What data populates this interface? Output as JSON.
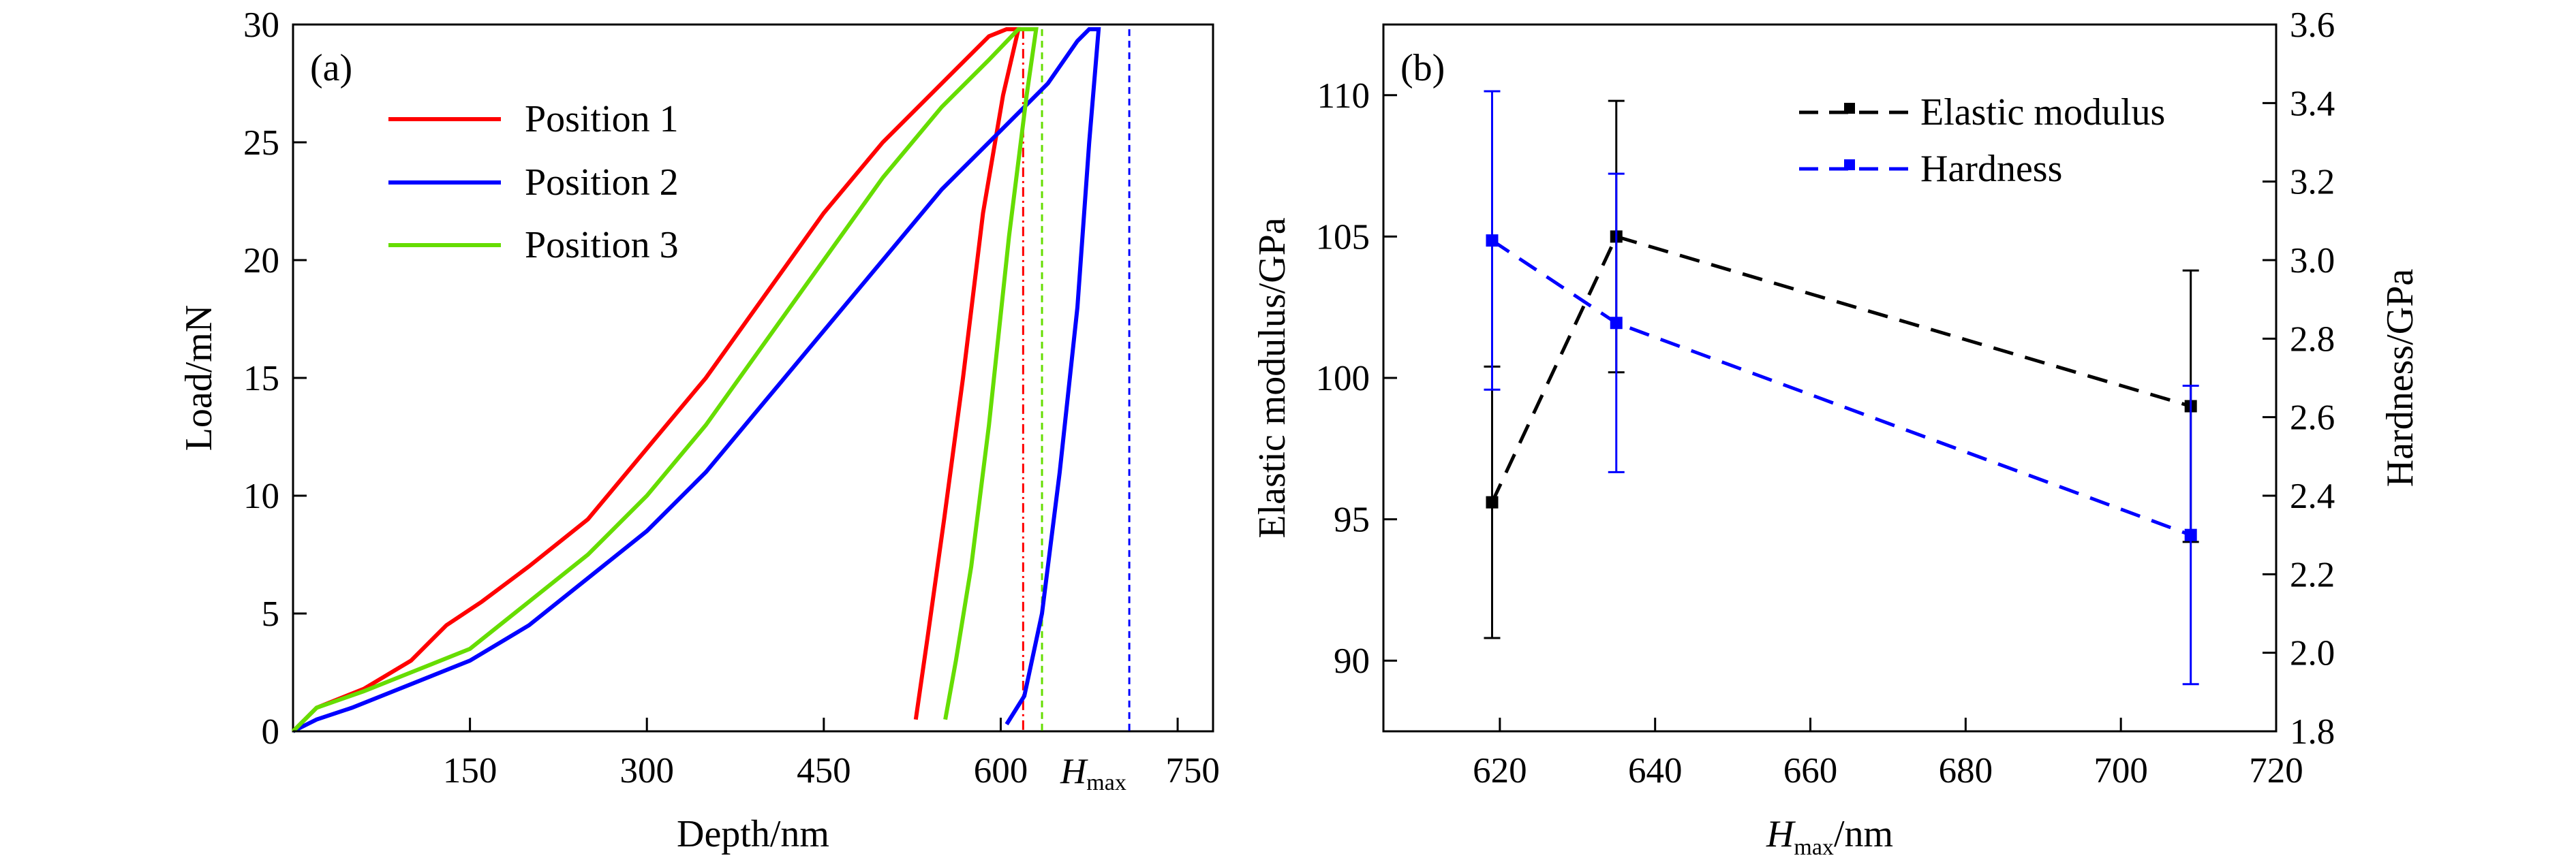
{
  "chart_data": [
    {
      "type": "line",
      "panel_label": "(a)",
      "xlabel": "Depth/nm",
      "ylabel": "Load/mN",
      "xlim": [
        0,
        780
      ],
      "ylim": [
        0,
        30
      ],
      "x_ticks": [
        150,
        300,
        450,
        600,
        750
      ],
      "x_tick_labels": [
        "150",
        "300",
        "450",
        "600",
        "750"
      ],
      "y_ticks": [
        0,
        5,
        10,
        15,
        20,
        25,
        30
      ],
      "y_tick_labels": [
        "0",
        "5",
        "10",
        "15",
        "20",
        "25",
        "30"
      ],
      "x_annotation": {
        "text": "H",
        "subscript": "max",
        "x": 680
      },
      "grid": false,
      "legend_position": "top-left",
      "series": [
        {
          "name": "Position 1",
          "color": "#ff0000",
          "loading": [
            [
              0,
              0
            ],
            [
              20,
              1
            ],
            [
              60,
              1.8
            ],
            [
              100,
              3
            ],
            [
              130,
              4.5
            ],
            [
              160,
              5.5
            ],
            [
              200,
              7
            ],
            [
              250,
              9
            ],
            [
              300,
              12
            ],
            [
              350,
              15
            ],
            [
              400,
              18.5
            ],
            [
              450,
              22
            ],
            [
              500,
              25
            ],
            [
              550,
              27.5
            ],
            [
              590,
              29.5
            ],
            [
              605,
              29.8
            ],
            [
              615,
              29.8
            ]
          ],
          "unloading": [
            [
              615,
              29.8
            ],
            [
              602,
              27
            ],
            [
              585,
              22
            ],
            [
              568,
              15
            ],
            [
              552,
              9
            ],
            [
              538,
              4
            ],
            [
              528,
              0.5
            ]
          ],
          "hmax": 619
        },
        {
          "name": "Position 2",
          "color": "#0000ff",
          "loading": [
            [
              0,
              0
            ],
            [
              20,
              0.5
            ],
            [
              50,
              1
            ],
            [
              100,
              2
            ],
            [
              150,
              3
            ],
            [
              200,
              4.5
            ],
            [
              250,
              6.5
            ],
            [
              300,
              8.5
            ],
            [
              350,
              11
            ],
            [
              400,
              14
            ],
            [
              450,
              17
            ],
            [
              500,
              20
            ],
            [
              550,
              23
            ],
            [
              600,
              25.5
            ],
            [
              640,
              27.5
            ],
            [
              665,
              29.3
            ],
            [
              675,
              29.8
            ],
            [
              683,
              29.8
            ]
          ],
          "unloading": [
            [
              683,
              29.8
            ],
            [
              675,
              25
            ],
            [
              665,
              18
            ],
            [
              650,
              11
            ],
            [
              635,
              5
            ],
            [
              620,
              1.5
            ],
            [
              605,
              0.3
            ]
          ],
          "hmax": 709
        },
        {
          "name": "Position 3",
          "color": "#66dd00",
          "loading": [
            [
              0,
              0
            ],
            [
              20,
              1
            ],
            [
              60,
              1.7
            ],
            [
              100,
              2.5
            ],
            [
              150,
              3.5
            ],
            [
              200,
              5.5
            ],
            [
              250,
              7.5
            ],
            [
              300,
              10
            ],
            [
              350,
              13
            ],
            [
              400,
              16.5
            ],
            [
              450,
              20
            ],
            [
              500,
              23.5
            ],
            [
              550,
              26.5
            ],
            [
              590,
              28.5
            ],
            [
              615,
              29.8
            ],
            [
              630,
              29.8
            ]
          ],
          "unloading": [
            [
              630,
              29.8
            ],
            [
              622,
              27
            ],
            [
              607,
              21
            ],
            [
              590,
              13
            ],
            [
              575,
              7
            ],
            [
              562,
              3
            ],
            [
              553,
              0.5
            ]
          ],
          "hmax": 635
        }
      ],
      "hmax_line_colors": [
        "#ff0000",
        "#66dd00",
        "#0000ff"
      ]
    },
    {
      "type": "line",
      "panel_label": "(b)",
      "xlabel_main": "H",
      "xlabel_sub": "max",
      "xlabel_rest": "/nm",
      "ylabel_left": "Elastic modulus/GPa",
      "ylabel_right": "Hardness/GPa",
      "xlim": [
        605,
        720
      ],
      "ylim_left": [
        87.5,
        112.5
      ],
      "ylim_right": [
        1.8,
        3.6
      ],
      "x_ticks": [
        620,
        640,
        660,
        680,
        700,
        720
      ],
      "x_tick_labels": [
        "620",
        "640",
        "660",
        "680",
        "700",
        "720"
      ],
      "y_left_ticks": [
        90,
        95,
        100,
        105,
        110
      ],
      "y_left_tick_labels": [
        "90",
        "95",
        "100",
        "105",
        "110"
      ],
      "y_right_ticks": [
        1.8,
        2.0,
        2.2,
        2.4,
        2.6,
        2.8,
        3.0,
        3.2,
        3.4,
        3.6
      ],
      "y_right_tick_labels": [
        "1.8",
        "2.0",
        "2.2",
        "2.4",
        "2.6",
        "2.8",
        "3.0",
        "3.2",
        "3.4",
        "3.6"
      ],
      "grid": false,
      "legend_position": "top-right",
      "series": [
        {
          "name": "Elastic modulus",
          "color": "#000000",
          "axis": "left",
          "x": [
            619,
            635,
            709
          ],
          "y": [
            95.6,
            105.0,
            99.0
          ],
          "err": [
            4.8,
            4.8,
            4.8
          ]
        },
        {
          "name": "Hardness",
          "color": "#0000ff",
          "axis": "right",
          "x": [
            619,
            635,
            709
          ],
          "y": [
            3.05,
            2.84,
            2.3
          ],
          "err": [
            0.38,
            0.38,
            0.38
          ]
        }
      ]
    }
  ]
}
